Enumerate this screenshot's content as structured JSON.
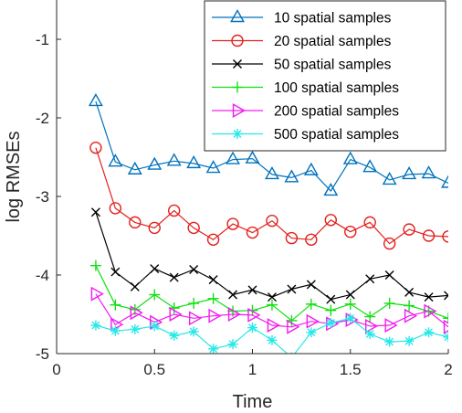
{
  "chart_data": {
    "type": "line",
    "xlabel": "Time",
    "ylabel": "log RMSEs",
    "xlim": [
      0,
      2
    ],
    "ylim": [
      -5,
      -0.5
    ],
    "xticks": [
      0,
      0.5,
      1,
      1.5,
      2
    ],
    "xtick_labels": [
      "0",
      "0.5",
      "1",
      "1.5",
      "2"
    ],
    "yticks": [
      -1,
      -2,
      -3,
      -4,
      -5
    ],
    "ytick_labels": [
      "-1",
      "-2",
      "-3",
      "-4",
      "-5"
    ],
    "grid": false,
    "legend_position": "top-right",
    "x": [
      0.2,
      0.3,
      0.4,
      0.5,
      0.6,
      0.7,
      0.8,
      0.9,
      1.0,
      1.1,
      1.2,
      1.3,
      1.4,
      1.5,
      1.6,
      1.7,
      1.8,
      1.9,
      2.0
    ],
    "series": [
      {
        "name": "10 spatial samples",
        "color": "#0072BD",
        "marker": "triangle",
        "values": [
          -1.79,
          -2.56,
          -2.66,
          -2.6,
          -2.55,
          -2.58,
          -2.64,
          -2.53,
          -2.52,
          -2.72,
          -2.76,
          -2.67,
          -2.93,
          -2.53,
          -2.63,
          -2.79,
          -2.72,
          -2.71,
          -2.83
        ]
      },
      {
        "name": "20 spatial samples",
        "color": "#E2201C",
        "marker": "circle",
        "values": [
          -2.38,
          -3.15,
          -3.33,
          -3.4,
          -3.18,
          -3.4,
          -3.55,
          -3.35,
          -3.46,
          -3.31,
          -3.53,
          -3.55,
          -3.3,
          -3.45,
          -3.33,
          -3.6,
          -3.42,
          -3.5,
          -3.51
        ]
      },
      {
        "name": "50 spatial samples",
        "color": "#000000",
        "marker": "x",
        "values": [
          -3.2,
          -3.96,
          -4.15,
          -3.92,
          -4.03,
          -3.93,
          -4.06,
          -4.25,
          -4.19,
          -4.28,
          -4.18,
          -4.12,
          -4.31,
          -4.25,
          -4.05,
          -4.0,
          -4.22,
          -4.28,
          -4.26
        ]
      },
      {
        "name": "100 spatial samples",
        "color": "#12E012",
        "marker": "plus",
        "values": [
          -3.88,
          -4.38,
          -4.44,
          -4.25,
          -4.42,
          -4.36,
          -4.3,
          -4.46,
          -4.45,
          -4.38,
          -4.58,
          -4.37,
          -4.45,
          -4.37,
          -4.53,
          -4.36,
          -4.39,
          -4.46,
          -4.55
        ]
      },
      {
        "name": "200 spatial samples",
        "color": "#F01CF0",
        "marker": "triangle-right",
        "values": [
          -4.24,
          -4.63,
          -4.48,
          -4.6,
          -4.5,
          -4.55,
          -4.52,
          -4.5,
          -4.51,
          -4.64,
          -4.66,
          -4.59,
          -4.62,
          -4.57,
          -4.65,
          -4.64,
          -4.52,
          -4.46,
          -4.66
        ]
      },
      {
        "name": "500 spatial samples",
        "color": "#27E8E8",
        "marker": "asterisk",
        "values": [
          -4.64,
          -4.71,
          -4.69,
          -4.65,
          -4.77,
          -4.72,
          -4.94,
          -4.88,
          -4.67,
          -4.83,
          -5.05,
          -4.73,
          -4.61,
          -4.55,
          -4.75,
          -4.85,
          -4.84,
          -4.73,
          -4.79
        ]
      }
    ]
  }
}
